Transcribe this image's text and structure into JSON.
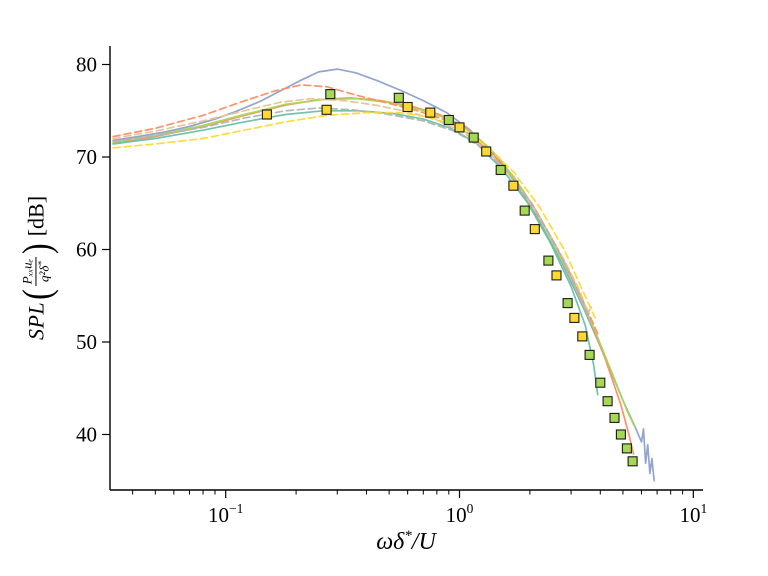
{
  "figure": {
    "xlabel": {
      "pre": "ωδ",
      "star": "*",
      "post": "/U"
    },
    "ylabel": {
      "prefix": "SPL",
      "open_paren": "(",
      "num": "Pₓₓuₑ",
      "den": "q²δ",
      "den_star": "*",
      "close_paren": ")",
      "unit": "[dB]"
    }
  },
  "chart_data": {
    "type": "line",
    "title": "",
    "xlabel": "ωδ*/U",
    "ylabel": "SPL(Pxx·ue/(q²·δ*)) [dB]",
    "x_scale": "log",
    "y_scale": "linear",
    "xlim": [
      0.032,
      11
    ],
    "ylim": [
      34,
      82
    ],
    "grid": false,
    "legend": null,
    "x_ticks": [
      {
        "value": 0.1,
        "base": "10",
        "exp": "−1"
      },
      {
        "value": 1,
        "base": "10",
        "exp": "0"
      },
      {
        "value": 10,
        "base": "10",
        "exp": "1"
      }
    ],
    "x_minor": [
      0.04,
      0.05,
      0.06,
      0.07,
      0.08,
      0.09,
      0.2,
      0.3,
      0.4,
      0.5,
      0.6,
      0.7,
      0.8,
      0.9,
      2,
      3,
      4,
      5,
      6,
      7,
      8,
      9
    ],
    "y_ticks": [
      40,
      50,
      60,
      70,
      80
    ],
    "series": [
      {
        "name": "blue-solid",
        "color": "#8da0cb",
        "dash": false,
        "points": [
          [
            0.033,
            71.8
          ],
          [
            0.042,
            72.2
          ],
          [
            0.055,
            72.7
          ],
          [
            0.07,
            73.3
          ],
          [
            0.09,
            74.1
          ],
          [
            0.11,
            74.9
          ],
          [
            0.14,
            76.0
          ],
          [
            0.17,
            77.1
          ],
          [
            0.21,
            78.3
          ],
          [
            0.25,
            79.2
          ],
          [
            0.3,
            79.5
          ],
          [
            0.36,
            79.1
          ],
          [
            0.45,
            78.2
          ],
          [
            0.56,
            77.2
          ],
          [
            0.7,
            76.1
          ],
          [
            0.88,
            74.8
          ],
          [
            1.1,
            73.0
          ],
          [
            1.4,
            70.3
          ],
          [
            1.75,
            67.1
          ],
          [
            2.2,
            63.0
          ],
          [
            2.75,
            58.5
          ],
          [
            3.4,
            53.6
          ],
          [
            4.2,
            48.3
          ],
          [
            5.0,
            43.7
          ],
          [
            5.6,
            41.0
          ],
          [
            6.0,
            39.2
          ],
          [
            6.12,
            40.6
          ],
          [
            6.25,
            36.9
          ],
          [
            6.38,
            38.9
          ],
          [
            6.52,
            35.8
          ],
          [
            6.65,
            37.4
          ],
          [
            6.8,
            35.0
          ]
        ]
      },
      {
        "name": "salmon-solid",
        "color": "#fc8d62",
        "dash": false,
        "points": [
          [
            0.033,
            71.5
          ],
          [
            0.05,
            72.2
          ],
          [
            0.08,
            73.3
          ],
          [
            0.12,
            74.5
          ],
          [
            0.18,
            75.6
          ],
          [
            0.25,
            76.2
          ],
          [
            0.34,
            76.4
          ],
          [
            0.46,
            76.1
          ],
          [
            0.62,
            75.5
          ],
          [
            0.82,
            74.6
          ],
          [
            1.05,
            73.3
          ],
          [
            1.35,
            70.9
          ],
          [
            1.7,
            67.9
          ],
          [
            2.15,
            64.0
          ],
          [
            2.7,
            59.4
          ],
          [
            3.4,
            54.1
          ],
          [
            4.2,
            48.2
          ],
          [
            4.9,
            43.2
          ],
          [
            5.3,
            40.0
          ],
          [
            5.55,
            37.9
          ]
        ]
      },
      {
        "name": "green-solid",
        "color": "#a6d854",
        "dash": false,
        "points": [
          [
            0.033,
            71.6
          ],
          [
            0.05,
            72.3
          ],
          [
            0.08,
            73.4
          ],
          [
            0.12,
            74.6
          ],
          [
            0.18,
            75.7
          ],
          [
            0.26,
            76.2
          ],
          [
            0.36,
            76.3
          ],
          [
            0.5,
            75.9
          ],
          [
            0.68,
            75.1
          ],
          [
            0.9,
            74.1
          ],
          [
            1.15,
            72.5
          ],
          [
            1.48,
            69.9
          ],
          [
            1.88,
            66.3
          ],
          [
            2.4,
            61.7
          ],
          [
            3.05,
            56.5
          ],
          [
            3.8,
            51.2
          ],
          [
            4.6,
            46.0
          ],
          [
            5.2,
            42.6
          ],
          [
            5.6,
            40.9
          ]
        ]
      },
      {
        "name": "teal-solid",
        "color": "#66c2a5",
        "dash": false,
        "points": [
          [
            0.033,
            71.4
          ],
          [
            0.05,
            72.0
          ],
          [
            0.08,
            72.9
          ],
          [
            0.12,
            73.8
          ],
          [
            0.18,
            74.6
          ],
          [
            0.26,
            75.0
          ],
          [
            0.37,
            75.0
          ],
          [
            0.52,
            74.7
          ],
          [
            0.7,
            74.1
          ],
          [
            0.92,
            73.1
          ],
          [
            1.18,
            71.5
          ],
          [
            1.52,
            68.7
          ],
          [
            1.95,
            65.1
          ],
          [
            2.45,
            60.7
          ],
          [
            3.0,
            56.0
          ],
          [
            3.45,
            51.8
          ],
          [
            3.75,
            47.5
          ],
          [
            3.9,
            44.3
          ]
        ]
      },
      {
        "name": "orange-dashed",
        "color": "#fc8d62",
        "dash": true,
        "points": [
          [
            0.033,
            72.2
          ],
          [
            0.05,
            73.1
          ],
          [
            0.08,
            74.5
          ],
          [
            0.115,
            75.9
          ],
          [
            0.16,
            77.1
          ],
          [
            0.21,
            77.8
          ],
          [
            0.27,
            77.6
          ],
          [
            0.36,
            76.7
          ],
          [
            0.48,
            75.9
          ],
          [
            0.64,
            75.1
          ],
          [
            0.85,
            74.1
          ],
          [
            1.1,
            72.5
          ],
          [
            1.42,
            70.0
          ],
          [
            1.82,
            66.6
          ],
          [
            2.32,
            62.5
          ],
          [
            2.9,
            58.0
          ],
          [
            3.5,
            53.6
          ],
          [
            3.9,
            50.9
          ]
        ]
      },
      {
        "name": "tan-dashed",
        "color": "#e5c494",
        "dash": true,
        "points": [
          [
            0.033,
            72.0
          ],
          [
            0.05,
            72.8
          ],
          [
            0.08,
            73.9
          ],
          [
            0.12,
            75.0
          ],
          [
            0.17,
            75.9
          ],
          [
            0.23,
            76.3
          ],
          [
            0.32,
            76.1
          ],
          [
            0.44,
            75.6
          ],
          [
            0.6,
            74.9
          ],
          [
            0.8,
            74.0
          ],
          [
            1.05,
            72.6
          ],
          [
            1.35,
            70.4
          ],
          [
            1.75,
            67.2
          ],
          [
            2.2,
            63.5
          ],
          [
            2.8,
            58.9
          ],
          [
            3.3,
            55.3
          ],
          [
            3.55,
            53.1
          ],
          [
            3.66,
            53.8
          ]
        ]
      },
      {
        "name": "gray-dashed",
        "color": "#b3b3b3",
        "dash": true,
        "points": [
          [
            0.033,
            71.7
          ],
          [
            0.05,
            72.3
          ],
          [
            0.08,
            73.2
          ],
          [
            0.12,
            74.2
          ],
          [
            0.18,
            75.0
          ],
          [
            0.25,
            75.3
          ],
          [
            0.35,
            75.1
          ],
          [
            0.5,
            74.6
          ],
          [
            0.7,
            73.9
          ],
          [
            0.95,
            72.8
          ],
          [
            1.25,
            71.0
          ],
          [
            1.6,
            68.4
          ],
          [
            2.05,
            64.9
          ],
          [
            2.6,
            60.3
          ],
          [
            3.2,
            55.5
          ],
          [
            3.6,
            52.5
          ]
        ]
      },
      {
        "name": "yellow-dashed",
        "color": "#ffd92f",
        "dash": true,
        "points": [
          [
            0.033,
            71.0
          ],
          [
            0.05,
            71.4
          ],
          [
            0.08,
            72.0
          ],
          [
            0.12,
            72.9
          ],
          [
            0.18,
            73.8
          ],
          [
            0.27,
            74.5
          ],
          [
            0.4,
            74.8
          ],
          [
            0.55,
            74.8
          ],
          [
            0.75,
            74.3
          ],
          [
            1.0,
            73.2
          ],
          [
            1.3,
            71.2
          ],
          [
            1.7,
            68.4
          ],
          [
            2.2,
            64.6
          ],
          [
            2.8,
            60.0
          ],
          [
            3.4,
            55.3
          ],
          [
            3.8,
            52.6
          ]
        ]
      }
    ],
    "markers": [
      {
        "name": "green-squares",
        "color": "#a6d854",
        "edge": "#1a1a1a",
        "shape": "square",
        "points": [
          [
            0.28,
            76.8
          ],
          [
            0.55,
            76.4
          ],
          [
            0.9,
            74.0
          ],
          [
            1.15,
            72.1
          ],
          [
            1.5,
            68.6
          ],
          [
            1.9,
            64.2
          ],
          [
            2.4,
            58.8
          ],
          [
            2.9,
            54.2
          ],
          [
            3.6,
            48.6
          ],
          [
            4.0,
            45.6
          ],
          [
            4.3,
            43.6
          ],
          [
            4.6,
            41.8
          ],
          [
            4.9,
            40.0
          ],
          [
            5.2,
            38.5
          ],
          [
            5.5,
            37.1
          ]
        ]
      },
      {
        "name": "yellow-squares",
        "color": "#ffd92f",
        "edge": "#1a1a1a",
        "shape": "square",
        "points": [
          [
            0.15,
            74.6
          ],
          [
            0.27,
            75.1
          ],
          [
            0.6,
            75.4
          ],
          [
            0.75,
            74.8
          ],
          [
            1.0,
            73.2
          ],
          [
            1.3,
            70.6
          ],
          [
            1.7,
            66.9
          ],
          [
            2.1,
            62.2
          ],
          [
            2.6,
            57.2
          ],
          [
            3.1,
            52.6
          ],
          [
            3.35,
            50.6
          ]
        ]
      }
    ]
  }
}
